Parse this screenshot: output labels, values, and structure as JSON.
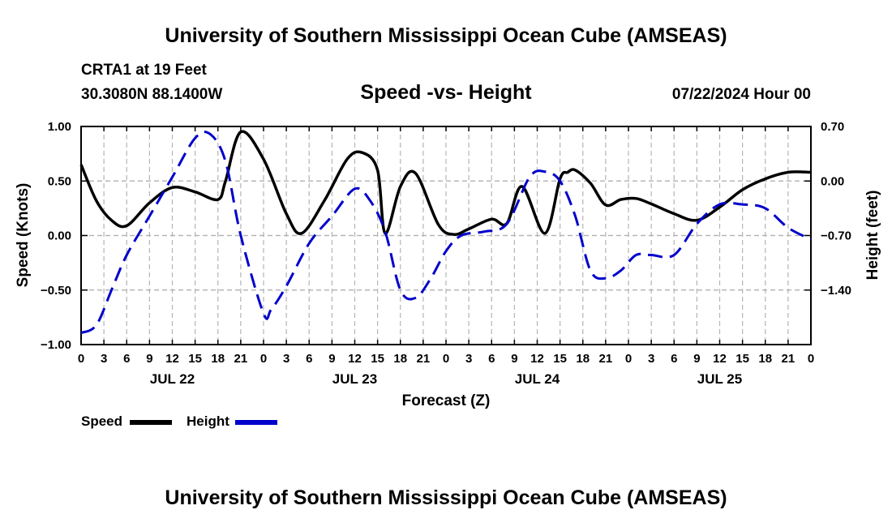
{
  "header": {
    "title": "University of Southern Mississippi Ocean Cube (AMSEAS)",
    "station": "CRTA1 at 19 Feet",
    "coords": "30.3080N  88.1400W",
    "date": "07/22/2024 Hour 00",
    "footer_title": "University of Southern Mississippi Ocean Cube (AMSEAS)"
  },
  "legend": {
    "speed_label": "Speed",
    "height_label": "Height"
  },
  "colors": {
    "speed": "#000000",
    "height": "#0000cc",
    "grid": "#b4b4b4"
  },
  "chart_data": {
    "type": "line",
    "title": "Speed -vs- Height",
    "xlabel": "Forecast (Z)",
    "ylabel": "Speed (Knots)",
    "ylabel_right": "Height (feet)",
    "xlim": [
      0,
      96
    ],
    "ylim": [
      -1.0,
      1.0
    ],
    "ylim_right": [
      -2.1,
      0.7
    ],
    "x_tick_labels": [
      "0",
      "3",
      "6",
      "9",
      "12",
      "15",
      "18",
      "21",
      "0",
      "3",
      "6",
      "9",
      "12",
      "15",
      "18",
      "21",
      "0",
      "3",
      "6",
      "9",
      "12",
      "15",
      "18",
      "21",
      "0",
      "3",
      "6",
      "9",
      "12",
      "15",
      "18",
      "21",
      "0"
    ],
    "date_labels": [
      {
        "hour": 12,
        "label": "JUL 22"
      },
      {
        "hour": 36,
        "label": "JUL 23"
      },
      {
        "hour": 60,
        "label": "JUL 24"
      },
      {
        "hour": 84,
        "label": "JUL 25"
      }
    ],
    "y_ticks": [
      -1.0,
      -0.5,
      0.0,
      0.5,
      1.0
    ],
    "y_tick_labels": [
      "−1.00",
      "−0.50",
      "0.00",
      "0.50",
      "1.00"
    ],
    "y_ticks_right": [
      -1.4,
      -0.7,
      0.0,
      0.7
    ],
    "y_tick_labels_right": [
      "−1.40",
      "−0.70",
      "0.00",
      "0.70"
    ],
    "series": [
      {
        "name": "Speed",
        "axis": "left",
        "style": "solid",
        "x": [
          0,
          2,
          4,
          6,
          9,
          12,
          15,
          18,
          19,
          21,
          24,
          27,
          29,
          32,
          35,
          37,
          39,
          40,
          42,
          44,
          47,
          49,
          51,
          54,
          56,
          58,
          61,
          63,
          64,
          65,
          67,
          69,
          71,
          73,
          75,
          78,
          81,
          84,
          87,
          90,
          93,
          96
        ],
        "values": [
          0.65,
          0.32,
          0.14,
          0.09,
          0.3,
          0.44,
          0.4,
          0.33,
          0.5,
          0.95,
          0.7,
          0.2,
          0.02,
          0.32,
          0.7,
          0.76,
          0.6,
          0.02,
          0.45,
          0.57,
          0.1,
          0.01,
          0.06,
          0.15,
          0.11,
          0.45,
          0.02,
          0.52,
          0.58,
          0.6,
          0.48,
          0.28,
          0.33,
          0.34,
          0.29,
          0.2,
          0.14,
          0.26,
          0.42,
          0.52,
          0.58,
          0.58
        ]
      },
      {
        "name": "Height",
        "axis": "right",
        "style": "dashed",
        "x": [
          0,
          2,
          4,
          6,
          9,
          12,
          15,
          17,
          19,
          21,
          24,
          25,
          27,
          30,
          33,
          36,
          38,
          40,
          42,
          44,
          46,
          48,
          50,
          53,
          56,
          59,
          61,
          63,
          65,
          67,
          69,
          71,
          73,
          75,
          78,
          81,
          84,
          87,
          90,
          93,
          96
        ],
        "values": [
          -1.95,
          -1.85,
          -1.4,
          -0.95,
          -0.45,
          0.05,
          0.55,
          0.6,
          0.25,
          -0.7,
          -1.7,
          -1.65,
          -1.35,
          -0.8,
          -0.45,
          -0.1,
          -0.25,
          -0.65,
          -1.4,
          -1.5,
          -1.25,
          -0.9,
          -0.7,
          -0.65,
          -0.55,
          0.05,
          0.12,
          0.0,
          -0.45,
          -1.15,
          -1.25,
          -1.15,
          -0.95,
          -0.95,
          -0.95,
          -0.55,
          -0.3,
          -0.3,
          -0.35,
          -0.6,
          -0.75
        ]
      }
    ]
  }
}
